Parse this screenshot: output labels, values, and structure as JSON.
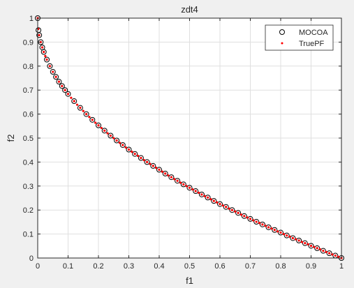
{
  "chart_data": {
    "type": "scatter",
    "title": "zdt4",
    "xlabel": "f1",
    "ylabel": "f2",
    "xlim": [
      0,
      1
    ],
    "ylim": [
      0,
      1
    ],
    "xticks": [
      0,
      0.1,
      0.2,
      0.3,
      0.4,
      0.5,
      0.6,
      0.7,
      0.8,
      0.9,
      1
    ],
    "yticks": [
      0,
      0.1,
      0.2,
      0.3,
      0.4,
      0.5,
      0.6,
      0.7,
      0.8,
      0.9,
      1
    ],
    "xtick_labels": [
      "0",
      "0.1",
      "0.2",
      "0.3",
      "0.4",
      "0.5",
      "0.6",
      "0.7",
      "0.8",
      "0.9",
      "1"
    ],
    "ytick_labels": [
      "0",
      "0.1",
      "0.2",
      "0.3",
      "0.4",
      "0.5",
      "0.6",
      "0.7",
      "0.8",
      "0.9",
      "1"
    ],
    "grid": true,
    "legend_position": "top-right",
    "series": [
      {
        "name": "MOCOA",
        "marker": "open-circle",
        "color": "#000000",
        "x": [
          0,
          0.0025,
          0.005,
          0.01,
          0.015,
          0.02,
          0.03,
          0.04,
          0.05,
          0.06,
          0.07,
          0.08,
          0.09,
          0.1,
          0.12,
          0.14,
          0.16,
          0.18,
          0.2,
          0.22,
          0.24,
          0.26,
          0.28,
          0.3,
          0.32,
          0.34,
          0.36,
          0.38,
          0.4,
          0.42,
          0.44,
          0.46,
          0.48,
          0.5,
          0.52,
          0.54,
          0.56,
          0.58,
          0.6,
          0.62,
          0.64,
          0.66,
          0.68,
          0.7,
          0.72,
          0.74,
          0.76,
          0.78,
          0.8,
          0.82,
          0.84,
          0.86,
          0.88,
          0.9,
          0.92,
          0.94,
          0.96,
          0.98,
          1
        ],
        "y": [
          1,
          0.95,
          0.929,
          0.9,
          0.878,
          0.859,
          0.827,
          0.8,
          0.776,
          0.755,
          0.735,
          0.717,
          0.7,
          0.684,
          0.654,
          0.626,
          0.6,
          0.576,
          0.553,
          0.531,
          0.51,
          0.49,
          0.471,
          0.452,
          0.434,
          0.417,
          0.4,
          0.384,
          0.368,
          0.352,
          0.337,
          0.322,
          0.307,
          0.293,
          0.279,
          0.265,
          0.252,
          0.238,
          0.225,
          0.213,
          0.2,
          0.188,
          0.175,
          0.163,
          0.151,
          0.14,
          0.128,
          0.117,
          0.106,
          0.094,
          0.083,
          0.073,
          0.062,
          0.051,
          0.041,
          0.03,
          0.02,
          0.01,
          0
        ]
      },
      {
        "name": "TruePF",
        "marker": "dot",
        "color": "#ff0000",
        "x": [
          0,
          0.002,
          0.005,
          0.01,
          0.015,
          0.02,
          0.025,
          0.03,
          0.04,
          0.05,
          0.06,
          0.07,
          0.08,
          0.09,
          0.1,
          0.11,
          0.12,
          0.13,
          0.14,
          0.15,
          0.16,
          0.17,
          0.18,
          0.19,
          0.2,
          0.21,
          0.22,
          0.23,
          0.24,
          0.25,
          0.26,
          0.27,
          0.28,
          0.29,
          0.3,
          0.31,
          0.32,
          0.33,
          0.34,
          0.35,
          0.36,
          0.37,
          0.38,
          0.39,
          0.4,
          0.41,
          0.42,
          0.43,
          0.44,
          0.45,
          0.46,
          0.47,
          0.48,
          0.49,
          0.5,
          0.51,
          0.52,
          0.53,
          0.54,
          0.55,
          0.56,
          0.57,
          0.58,
          0.59,
          0.6,
          0.61,
          0.62,
          0.63,
          0.64,
          0.65,
          0.66,
          0.67,
          0.68,
          0.69,
          0.7,
          0.71,
          0.72,
          0.73,
          0.74,
          0.75,
          0.76,
          0.77,
          0.78,
          0.79,
          0.8,
          0.81,
          0.82,
          0.83,
          0.84,
          0.85,
          0.86,
          0.87,
          0.88,
          0.89,
          0.9,
          0.91,
          0.92,
          0.93,
          0.94,
          0.95,
          0.96,
          0.97,
          0.98,
          0.99,
          1
        ],
        "y": [
          1,
          0.955,
          0.929,
          0.9,
          0.878,
          0.859,
          0.842,
          0.827,
          0.8,
          0.776,
          0.755,
          0.735,
          0.717,
          0.7,
          0.684,
          0.668,
          0.654,
          0.639,
          0.626,
          0.613,
          0.6,
          0.588,
          0.576,
          0.564,
          0.553,
          0.542,
          0.531,
          0.52,
          0.51,
          0.5,
          0.49,
          0.48,
          0.471,
          0.461,
          0.452,
          0.443,
          0.434,
          0.426,
          0.417,
          0.408,
          0.4,
          0.392,
          0.384,
          0.376,
          0.368,
          0.36,
          0.352,
          0.344,
          0.337,
          0.329,
          0.322,
          0.314,
          0.307,
          0.3,
          0.293,
          0.286,
          0.279,
          0.272,
          0.265,
          0.258,
          0.252,
          0.245,
          0.238,
          0.232,
          0.225,
          0.219,
          0.213,
          0.206,
          0.2,
          0.194,
          0.188,
          0.181,
          0.175,
          0.169,
          0.163,
          0.157,
          0.151,
          0.146,
          0.14,
          0.134,
          0.128,
          0.123,
          0.117,
          0.111,
          0.106,
          0.1,
          0.094,
          0.089,
          0.083,
          0.078,
          0.073,
          0.067,
          0.062,
          0.057,
          0.051,
          0.046,
          0.041,
          0.036,
          0.03,
          0.025,
          0.02,
          0.015,
          0.01,
          0.005,
          0
        ]
      }
    ]
  }
}
